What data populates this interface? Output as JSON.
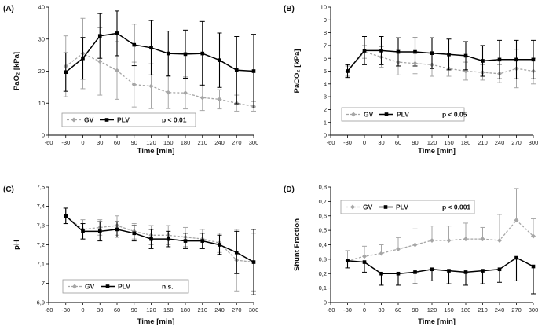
{
  "figure": {
    "legend_gv": "GV",
    "legend_plv": "PLV"
  },
  "chart_data": [
    {
      "type": "line",
      "panel": "(A)",
      "ylabel": "PaO₂ [kPa]",
      "xlabel": "Time [min]",
      "xlim": [
        -60,
        300
      ],
      "x_ticks": [
        -60,
        -30,
        0,
        30,
        60,
        90,
        120,
        150,
        180,
        210,
        240,
        270,
        300
      ],
      "ylim": [
        0,
        40
      ],
      "y_ticks": [
        0,
        10,
        20,
        30,
        40
      ],
      "y_tick_labels": [
        "0",
        "10",
        "20",
        "30",
        "40"
      ],
      "x": [
        -30,
        0,
        30,
        60,
        90,
        120,
        150,
        180,
        210,
        240,
        270,
        300
      ],
      "series": [
        {
          "name": "GV",
          "values": [
            21.5,
            25.5,
            23,
            20.2,
            15.8,
            15.3,
            13.3,
            13.2,
            11.7,
            11.2,
            10,
            9
          ],
          "errors": [
            9.5,
            11,
            10.5,
            9,
            7,
            7,
            5,
            5,
            4,
            3,
            2.5,
            1.5
          ],
          "error_dir": "both"
        },
        {
          "name": "PLV",
          "values": [
            19.7,
            24,
            31,
            31.8,
            28.2,
            27.3,
            25.5,
            25.3,
            25.5,
            23.4,
            20.3,
            20
          ],
          "errors": [
            6,
            6.5,
            7,
            7,
            6.5,
            8.5,
            7,
            7.5,
            10,
            8.5,
            10.5,
            11.5
          ],
          "error_dir": "both"
        }
      ],
      "annotation": "p < 0.01"
    },
    {
      "type": "line",
      "panel": "(B)",
      "ylabel": "PaCO₂ [kPa]",
      "xlabel": "Time [min]",
      "xlim": [
        -60,
        300
      ],
      "x_ticks": [
        -60,
        -30,
        0,
        30,
        60,
        90,
        120,
        150,
        180,
        210,
        240,
        270,
        300
      ],
      "ylim": [
        0,
        10
      ],
      "y_ticks": [
        0,
        1,
        2,
        3,
        4,
        5,
        6,
        7,
        8,
        9,
        10
      ],
      "y_tick_labels": [
        "0",
        "1",
        "2",
        "3",
        "4",
        "5",
        "6",
        "7",
        "8",
        "9",
        "10"
      ],
      "x": [
        -30,
        0,
        30,
        60,
        90,
        120,
        150,
        180,
        210,
        240,
        270,
        300
      ],
      "series": [
        {
          "name": "GV",
          "values": [
            5,
            6.5,
            6.1,
            5.7,
            5.6,
            5.5,
            5.2,
            5,
            4.9,
            4.8,
            5.2,
            5
          ],
          "errors": [
            0.4,
            0.5,
            0.8,
            1.0,
            0.8,
            0.9,
            0.6,
            0.7,
            0.6,
            0.7,
            1.5,
            1.0
          ],
          "error_dir": "both"
        },
        {
          "name": "PLV",
          "values": [
            5,
            6.6,
            6.6,
            6.5,
            6.5,
            6.4,
            6.3,
            6.2,
            5.8,
            5.9,
            5.9,
            5.9
          ],
          "errors": [
            0.5,
            1.1,
            1.1,
            1.1,
            1.1,
            1.2,
            1.2,
            1.1,
            1.2,
            1.5,
            1.5,
            1.5
          ],
          "error_dir": "both"
        }
      ],
      "annotation": "p < 0.05"
    },
    {
      "type": "line",
      "panel": "(C)",
      "ylabel": "pH",
      "xlabel": "Time [min]",
      "xlim": [
        -60,
        300
      ],
      "x_ticks": [
        -60,
        -30,
        0,
        30,
        60,
        90,
        120,
        150,
        180,
        210,
        240,
        270,
        300
      ],
      "ylim": [
        6.9,
        7.5
      ],
      "y_ticks": [
        6.9,
        7.0,
        7.1,
        7.2,
        7.3,
        7.4,
        7.5
      ],
      "y_tick_labels": [
        "6,9",
        "7",
        "7,1",
        "7,2",
        "7,3",
        "7,4",
        "7,5"
      ],
      "x": [
        -30,
        0,
        30,
        60,
        90,
        120,
        150,
        180,
        210,
        240,
        270,
        300
      ],
      "series": [
        {
          "name": "GV",
          "values": [
            7.35,
            7.28,
            7.29,
            7.3,
            7.27,
            7.25,
            7.25,
            7.24,
            7.23,
            7.21,
            7.12,
            7.11
          ],
          "errors": [
            0.04,
            0.05,
            0.04,
            0.05,
            0.04,
            0.05,
            0.05,
            0.05,
            0.05,
            0.05,
            0.16,
            0.15
          ],
          "error_dir": "both"
        },
        {
          "name": "PLV",
          "values": [
            7.35,
            7.27,
            7.27,
            7.28,
            7.26,
            7.23,
            7.23,
            7.22,
            7.22,
            7.2,
            7.16,
            7.11
          ],
          "errors": [
            0.04,
            0.04,
            0.05,
            0.04,
            0.04,
            0.05,
            0.04,
            0.04,
            0.04,
            0.05,
            0.11,
            0.17
          ],
          "error_dir": "both"
        }
      ],
      "annotation": "n.s."
    },
    {
      "type": "line",
      "panel": "(D)",
      "ylabel": "Shunt Fraction",
      "xlabel": "Time [min]",
      "xlim": [
        -60,
        300
      ],
      "x_ticks": [
        -60,
        -30,
        0,
        30,
        60,
        90,
        120,
        150,
        180,
        210,
        240,
        270,
        300
      ],
      "ylim": [
        0,
        0.8
      ],
      "y_ticks": [
        0,
        0.1,
        0.2,
        0.3,
        0.4,
        0.5,
        0.6,
        0.7,
        0.8
      ],
      "y_tick_labels": [
        "0",
        "0,1",
        "0,2",
        "0,3",
        "0,4",
        "0,5",
        "0,6",
        "0,7",
        "0,8"
      ],
      "x": [
        -30,
        0,
        30,
        60,
        90,
        120,
        150,
        180,
        210,
        240,
        270,
        300
      ],
      "series": [
        {
          "name": "GV",
          "values": [
            0.29,
            0.32,
            0.34,
            0.37,
            0.4,
            0.43,
            0.43,
            0.44,
            0.44,
            0.43,
            0.57,
            0.46
          ],
          "errors": [
            0.07,
            0.07,
            0.06,
            0.08,
            0.11,
            0.1,
            0.1,
            0.11,
            0.08,
            0.18,
            0.22,
            0.12
          ],
          "error_dir": "up"
        },
        {
          "name": "PLV",
          "values": [
            0.29,
            0.28,
            0.2,
            0.2,
            0.21,
            0.23,
            0.22,
            0.21,
            0.22,
            0.23,
            0.31,
            0.25
          ],
          "errors": [
            0.05,
            0.07,
            0.08,
            0.08,
            0.08,
            0.08,
            0.09,
            0.09,
            0.09,
            0.09,
            0.16,
            0.19
          ],
          "error_dir": "down"
        }
      ],
      "annotation": "p < 0.001"
    }
  ]
}
